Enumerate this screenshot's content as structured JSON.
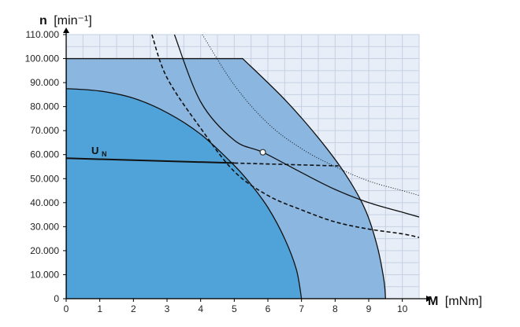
{
  "chart_data": {
    "type": "area",
    "title": "",
    "x_axis": {
      "symbol": "M",
      "unit": "[mNm]",
      "range": [
        0,
        10.5
      ],
      "ticks": [
        "0",
        "1",
        "2",
        "3",
        "4",
        "5",
        "6",
        "7",
        "8",
        "9",
        "10"
      ]
    },
    "y_axis": {
      "symbol": "n",
      "unit": "[min⁻¹]",
      "range": [
        0,
        110000
      ],
      "ticks": [
        "0",
        "10.000",
        "20.000",
        "30.000",
        "40.000",
        "50.000",
        "60.000",
        "70.000",
        "80.000",
        "90.000",
        "100.000",
        "110.000"
      ]
    },
    "grid": true,
    "colors": {
      "plot_background": "#e8eef8",
      "grid": "#c5d0e3",
      "region_outer": "#8ab6e0",
      "region_inner": "#4fa3d9",
      "line": "#111111"
    },
    "regions": [
      {
        "id": "outer",
        "boundary": [
          [
            0,
            100000
          ],
          [
            5.25,
            100000
          ],
          [
            6.5,
            83000
          ],
          [
            7.5,
            67000
          ],
          [
            8.3,
            52000
          ],
          [
            8.9,
            37000
          ],
          [
            9.25,
            22000
          ],
          [
            9.45,
            8000
          ],
          [
            9.5,
            0
          ]
        ]
      },
      {
        "id": "inner",
        "boundary": [
          [
            0,
            87500
          ],
          [
            1,
            86500
          ],
          [
            2,
            83500
          ],
          [
            3,
            77500
          ],
          [
            4,
            68500
          ],
          [
            5,
            55500
          ],
          [
            5.5,
            47500
          ],
          [
            6,
            38000
          ],
          [
            6.5,
            25000
          ],
          [
            6.85,
            12000
          ],
          [
            7.0,
            0
          ]
        ]
      }
    ],
    "series": [
      {
        "name": "U",
        "subscript": "N",
        "style": "solid",
        "points": [
          [
            0,
            58500
          ],
          [
            5.0,
            56500
          ]
        ]
      },
      {
        "style": "dashed",
        "points": [
          [
            5.0,
            56500
          ],
          [
            8.1,
            55300
          ]
        ]
      },
      {
        "style": "solid",
        "points": [
          [
            3.22,
            110000
          ],
          [
            4,
            82000
          ],
          [
            5,
            66000
          ],
          [
            5.85,
            61000
          ],
          [
            7,
            52500
          ],
          [
            8,
            45500
          ],
          [
            9,
            40000
          ],
          [
            10,
            36000
          ],
          [
            10.5,
            34000
          ]
        ]
      },
      {
        "style": "dashed",
        "points": [
          [
            2.55,
            110000
          ],
          [
            3,
            92000
          ],
          [
            4,
            71000
          ],
          [
            5,
            53000
          ],
          [
            6,
            43000
          ],
          [
            7,
            37000
          ],
          [
            8,
            32000
          ],
          [
            9,
            29000
          ],
          [
            10,
            27000
          ],
          [
            10.5,
            25500
          ]
        ]
      },
      {
        "style": "dotted",
        "points": [
          [
            4.05,
            110000
          ],
          [
            5,
            89000
          ],
          [
            6,
            73000
          ],
          [
            7,
            62500
          ],
          [
            8,
            55000
          ],
          [
            9,
            49000
          ],
          [
            10,
            45000
          ],
          [
            10.5,
            43000
          ]
        ]
      }
    ],
    "operating_point": {
      "x": 5.85,
      "y": 61000
    }
  }
}
